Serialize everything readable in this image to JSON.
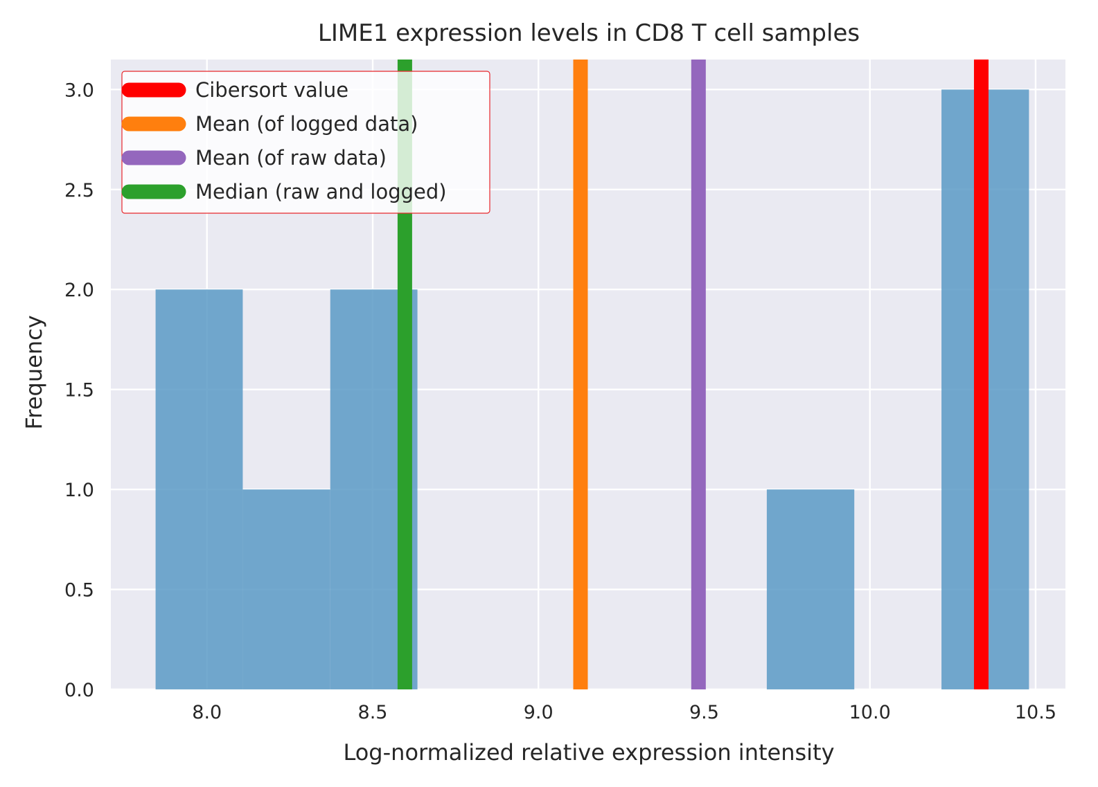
{
  "chart_data": {
    "type": "bar",
    "title": "LIME1 expression levels in CD8 T cell samples",
    "xlabel": "Log-normalized relative expression intensity",
    "ylabel": "Frequency",
    "xlim": [
      7.71,
      10.59
    ],
    "ylim": [
      0,
      3.15
    ],
    "grid": true,
    "background": "#eaeaf2",
    "grid_color": "#ffffff",
    "histogram": {
      "bin_edges": [
        7.845,
        8.108,
        8.372,
        8.635,
        8.899,
        9.162,
        9.426,
        9.689,
        9.953,
        10.216,
        10.48
      ],
      "counts": [
        2,
        1,
        2,
        0,
        0,
        0,
        0,
        1,
        0,
        3
      ],
      "color": "#5b9ac6",
      "opacity": 0.85
    },
    "x_ticks": [
      {
        "value": 8.0,
        "label": "8.0"
      },
      {
        "value": 8.5,
        "label": "8.5"
      },
      {
        "value": 9.0,
        "label": "9.0"
      },
      {
        "value": 9.5,
        "label": "9.5"
      },
      {
        "value": 10.0,
        "label": "10.0"
      },
      {
        "value": 10.5,
        "label": "10.5"
      }
    ],
    "y_ticks": [
      {
        "value": 0.0,
        "label": "0.0"
      },
      {
        "value": 0.5,
        "label": "0.5"
      },
      {
        "value": 1.0,
        "label": "1.0"
      },
      {
        "value": 1.5,
        "label": "1.5"
      },
      {
        "value": 2.0,
        "label": "2.0"
      },
      {
        "value": 2.5,
        "label": "2.5"
      },
      {
        "value": 3.0,
        "label": "3.0"
      }
    ],
    "vlines": [
      {
        "name": "Cibersort value",
        "x": 10.336,
        "color": "#ff0000"
      },
      {
        "name": "Mean (of logged data)",
        "x": 9.127,
        "color": "#ff7f0e"
      },
      {
        "name": "Mean (of raw data)",
        "x": 9.483,
        "color": "#9467bd"
      },
      {
        "name": "Median (raw and logged)",
        "x": 8.597,
        "color": "#2ca02c"
      }
    ],
    "legend": {
      "placement": "top-left",
      "border_color": "#e8262b",
      "items": [
        "Cibersort value",
        "Mean (of logged data)",
        "Mean (of raw data)",
        "Median (raw and logged)"
      ]
    }
  }
}
